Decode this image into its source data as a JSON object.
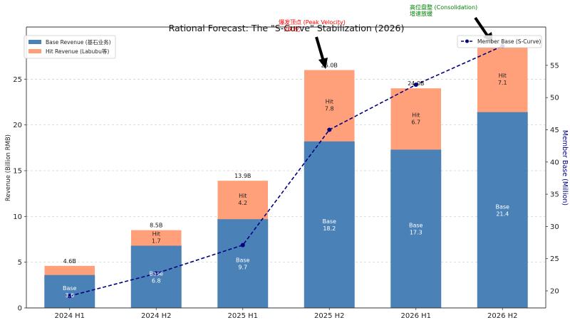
{
  "chart_data": {
    "type": "bar",
    "title": "Rational Forecast: The \"S-Curve\" Stabilization (2026)",
    "xlabel": "",
    "ylabel": "Revenue (Billion RMB)",
    "y2label": "Member Base (Million)",
    "ylim": [
      0,
      30.7
    ],
    "y2lim": [
      17.35,
      60.95
    ],
    "yticks": [
      0,
      5,
      10,
      15,
      20,
      25
    ],
    "y2ticks": [
      20,
      25,
      30,
      35,
      40,
      45,
      50,
      55
    ],
    "grid": true,
    "categories": [
      "2024 H1",
      "2024 H2",
      "2025 H1",
      "2025 H2",
      "2026 H1",
      "2026 H2"
    ],
    "series": [
      {
        "name": "Base Revenue (基石业务)",
        "kind": "stacked-bar",
        "color": "#4a82b8",
        "values": [
          3.6,
          6.8,
          9.7,
          18.2,
          17.3,
          21.4
        ],
        "label_prefix": "Base"
      },
      {
        "name": "Hit Revenue (Labubu等)",
        "kind": "stacked-bar",
        "color": "#ffa07a",
        "values": [
          1.0,
          1.7,
          4.2,
          7.8,
          6.7,
          7.1
        ],
        "label_prefix": "Hit",
        "show_labels": [
          false,
          true,
          true,
          true,
          true,
          true
        ]
      },
      {
        "name": "Member Base (S-Curve)",
        "kind": "line",
        "axis": "right",
        "color": "#000080",
        "style": "dashed",
        "marker": "circle",
        "values": [
          19.2,
          22.7,
          27.1,
          45.0,
          52.0,
          58.0
        ]
      }
    ],
    "total_labels": [
      "4.6B",
      "8.5B",
      "13.9B",
      "26.0B",
      "24.0B",
      "28.5B"
    ],
    "show_total_labels": [
      true,
      true,
      true,
      true,
      true,
      false
    ],
    "legend_left": {
      "placement": "top-left",
      "entries": [
        "Base Revenue (基石业务)",
        "Hit Revenue (Labubu等)"
      ]
    },
    "legend_right": {
      "placement": "top-right",
      "entries": [
        "Member Base (S-Curve)"
      ]
    },
    "annotations": [
      {
        "text_line1": "爆发顶点 (Peak Velocity)",
        "text_line2": "260亿",
        "color": "#ff0000",
        "target_category": "2025 H2",
        "target_value": 26.0
      },
      {
        "text_line1": "高位盘整 (Consolidation)",
        "text_line2": "增速放缓",
        "color": "#008000",
        "target_category": "2026 H2",
        "target_member": 58.0
      }
    ]
  }
}
